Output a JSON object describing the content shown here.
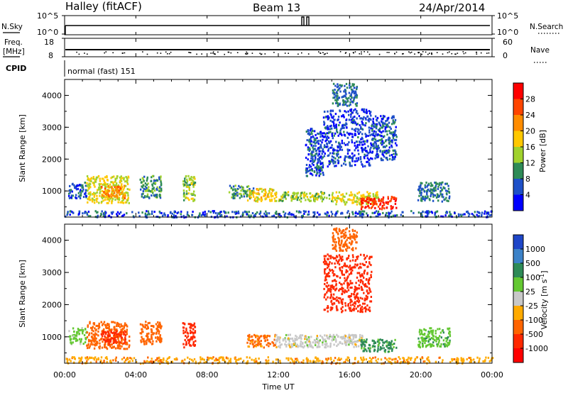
{
  "header": {
    "station": "Halley (fitACF)",
    "beam": "Beam 13",
    "date": "24/Apr/2014"
  },
  "nsky_panel": {
    "left_label": "N.Sky",
    "right_label": "N.Search",
    "left_ticks": [
      "10^5",
      "10^0"
    ],
    "right_ticks": [
      "10^5",
      "10^0"
    ],
    "right_legend_line": "dotted"
  },
  "freq_panel": {
    "left_label_line1": "Freq.",
    "left_label_line2": "[MHz]",
    "left_ticks": [
      "18",
      "8"
    ],
    "right_label": "Nave",
    "right_ticks": [
      "60",
      "0"
    ],
    "right_legend_line": "dotted"
  },
  "cpid": {
    "label": "CPID",
    "value": "normal (fast) 151"
  },
  "power_panel": {
    "ylabel": "Slant Range [km]",
    "yticks": [
      "4000",
      "3000",
      "2000",
      "1000"
    ],
    "colorbar_label": "Power [dB]",
    "colorbar_ticks": [
      "28",
      "24",
      "20",
      "16",
      "12",
      "8",
      "4"
    ],
    "colorbar_colors": [
      "#ff0000",
      "#ff4500",
      "#ff8c00",
      "#ffc800",
      "#a0d22d",
      "#2e8b57",
      "#1e50c8",
      "#0000ff"
    ]
  },
  "velocity_panel": {
    "ylabel": "Slant Range [km]",
    "yticks": [
      "4000",
      "3000",
      "2000",
      "1000"
    ],
    "colorbar_label": "Velocity [m s",
    "colorbar_label_sup": "-1",
    "colorbar_label_end": "]",
    "colorbar_ticks": [
      "1000",
      "500",
      "100",
      "25",
      "-25",
      "-100",
      "-500",
      "-1000"
    ],
    "colorbar_colors": [
      "#1e46c8",
      "#3c82c8",
      "#2e8b57",
      "#64c832",
      "#c8c8c8",
      "#ffaa00",
      "#ff6400",
      "#ff2800",
      "#ff0000"
    ]
  },
  "xaxis": {
    "label": "Time UT",
    "ticks": [
      "00:00",
      "04:00",
      "08:00",
      "12:00",
      "16:00",
      "20:00",
      "00:00"
    ]
  },
  "chart_data": {
    "type": "heatmap",
    "x_unit": "hours UT",
    "y_unit": "km",
    "xlim": [
      0,
      24
    ],
    "ylim": [
      180,
      4500
    ],
    "power_regions": [
      {
        "x": [
          0.2,
          1.2
        ],
        "y": [
          800,
          1300
        ],
        "level": 6
      },
      {
        "x": [
          1.2,
          3.6
        ],
        "y": [
          650,
          1500
        ],
        "level": 16
      },
      {
        "x": [
          2.0,
          3.4
        ],
        "y": [
          800,
          1200
        ],
        "level": 22
      },
      {
        "x": [
          4.2,
          5.4
        ],
        "y": [
          800,
          1500
        ],
        "level": 10
      },
      {
        "x": [
          6.6,
          7.3
        ],
        "y": [
          700,
          1500
        ],
        "level": 14
      },
      {
        "x": [
          9.2,
          10.6
        ],
        "y": [
          800,
          1200
        ],
        "level": 10
      },
      {
        "x": [
          10.2,
          11.8
        ],
        "y": [
          700,
          1100
        ],
        "level": 18
      },
      {
        "x": [
          11.8,
          15.2
        ],
        "y": [
          700,
          1000
        ],
        "level": 14
      },
      {
        "x": [
          15.2,
          17.6
        ],
        "y": [
          600,
          1000
        ],
        "level": 16
      },
      {
        "x": [
          16.6,
          18.6
        ],
        "y": [
          450,
          850
        ],
        "level": 28
      },
      {
        "x": [
          13.5,
          14.5
        ],
        "y": [
          1500,
          3000
        ],
        "level": 6
      },
      {
        "x": [
          14.5,
          17.2
        ],
        "y": [
          1800,
          3600
        ],
        "level": 5
      },
      {
        "x": [
          15.0,
          16.4
        ],
        "y": [
          3700,
          4400
        ],
        "level": 8
      },
      {
        "x": [
          17.2,
          18.6
        ],
        "y": [
          2000,
          3400
        ],
        "level": 6
      },
      {
        "x": [
          19.8,
          21.6
        ],
        "y": [
          700,
          1300
        ],
        "level": 8
      },
      {
        "x": [
          0.0,
          24.0
        ],
        "y": [
          200,
          400
        ],
        "level": 6
      }
    ],
    "velocity_regions": [
      {
        "x": [
          0.2,
          1.2
        ],
        "y": [
          800,
          1300
        ],
        "v": 50
      },
      {
        "x": [
          1.2,
          3.6
        ],
        "y": [
          650,
          1500
        ],
        "v": -150
      },
      {
        "x": [
          2.0,
          3.4
        ],
        "y": [
          800,
          1200
        ],
        "v": -600
      },
      {
        "x": [
          4.2,
          5.4
        ],
        "y": [
          800,
          1500
        ],
        "v": -200
      },
      {
        "x": [
          6.6,
          7.3
        ],
        "y": [
          700,
          1500
        ],
        "v": -700
      },
      {
        "x": [
          10.2,
          11.8
        ],
        "y": [
          700,
          1100
        ],
        "v": -120
      },
      {
        "x": [
          11.8,
          15.2
        ],
        "y": [
          700,
          1100
        ],
        "v": 0
      },
      {
        "x": [
          15.2,
          16.8
        ],
        "y": [
          700,
          1100
        ],
        "v": 0
      },
      {
        "x": [
          16.6,
          18.6
        ],
        "y": [
          550,
          950
        ],
        "v": 120
      },
      {
        "x": [
          14.5,
          17.2
        ],
        "y": [
          1800,
          3600
        ],
        "v": -600
      },
      {
        "x": [
          15.0,
          16.4
        ],
        "y": [
          3700,
          4400
        ],
        "v": -400
      },
      {
        "x": [
          19.8,
          21.6
        ],
        "y": [
          700,
          1300
        ],
        "v": 80
      },
      {
        "x": [
          0.0,
          24.0
        ],
        "y": [
          200,
          400
        ],
        "v": -80
      }
    ]
  }
}
